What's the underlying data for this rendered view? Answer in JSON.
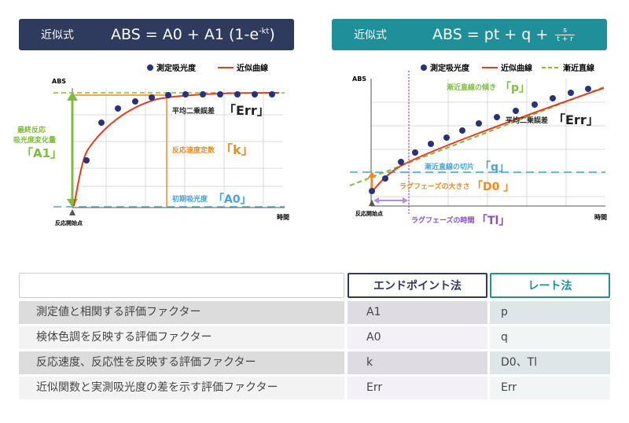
{
  "left_panel": {
    "header": {
      "label": "近似式",
      "equation_base": "ABS = A0 + A1 (1-e",
      "equation_exp": "-kt",
      "equation_close": ")"
    },
    "legend": {
      "measured": "測定吸光度",
      "fit": "近似曲線"
    },
    "y_axis_label": "ABS",
    "x_axis_label": "時間",
    "start_label": "反応開始点",
    "annotations": {
      "a1_line1": "最終反応",
      "a1_line2": "吸光度変化量",
      "a1_param": "「A1」",
      "err_text": "平均二乗誤差",
      "err_param": "「Err」",
      "k_text": "反応速度定数",
      "k_param": "「k」",
      "a0_text": "初期吸光度",
      "a0_param": "「A0」"
    },
    "colors": {
      "points": "#26327a",
      "fit": "#e63b1f",
      "plateau": "#7dbd3d",
      "a1": "#7dbd3d",
      "k": "#f08a24",
      "a0": "#4aa3d6"
    }
  },
  "right_panel": {
    "header": {
      "label": "近似式",
      "equation_base": "ABS = pt + q + ",
      "frac_num": "s",
      "frac_den": "t + r"
    },
    "legend": {
      "measured": "測定吸光度",
      "fit": "近似曲線",
      "asymptote": "漸近直線"
    },
    "y_axis_label": "ABS",
    "x_axis_label": "時間",
    "start_label": "反応開始点",
    "annotations": {
      "p_text": "漸近直線の傾き",
      "p_param": "「p」",
      "err_text": "平均二乗誤差",
      "err_param": "「Err」",
      "q_text": "漸近直線の切片",
      "q_param": "「q」",
      "d0_text": "ラグフェーズの大きさ",
      "d0_param": "「D0 」",
      "tl_text": "ラグフェーズの時間",
      "tl_param": "「Tl」"
    },
    "colors": {
      "points": "#26327a",
      "fit": "#e63b1f",
      "asymptote": "#7dbd3d",
      "q": "#4aa3d6",
      "d0": "#f08a24",
      "tl": "#8b4fc4"
    }
  },
  "table": {
    "headers": [
      "",
      "エンドポイント法",
      "レート法"
    ],
    "header_colors": [
      "#c8cdd6",
      "#2e3a5e",
      "#1f8f99"
    ],
    "rows": [
      [
        "測定値と相関する評価ファクター",
        "A1",
        "p"
      ],
      [
        "検体色調を反映する評価ファクター",
        "A0",
        "q"
      ],
      [
        "反応速度、反応性を反映する評価ファクター",
        "k",
        "D0、Tl"
      ],
      [
        "近似関数と実測吸光度の差を示す評価ファクター",
        "Err",
        "Err"
      ]
    ]
  }
}
